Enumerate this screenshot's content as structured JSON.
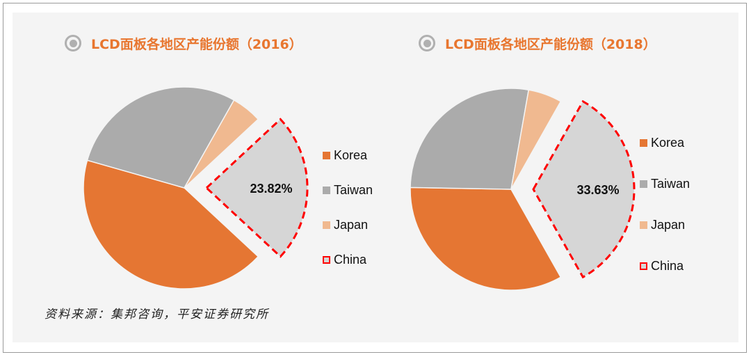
{
  "colors": {
    "Korea": "#e57633",
    "Taiwan": "#ababab",
    "Japan": "#f0b990",
    "China": "#d6d6d6",
    "china_outline": "#ff0000",
    "title": "#e8762f"
  },
  "chart_data": [
    {
      "type": "pie",
      "title": "LCD面板各地区产能份额（2016）",
      "categories": [
        "China",
        "Korea",
        "Taiwan",
        "Japan"
      ],
      "values": [
        23.82,
        42.5,
        28.8,
        4.88
      ],
      "data_labels": {
        "China": "23.82%"
      },
      "exploded": "China",
      "legend": [
        "Korea",
        "Taiwan",
        "Japan",
        "China"
      ],
      "legend_placement": "right"
    },
    {
      "type": "pie",
      "title": "LCD面板各地区产能份额（2018）",
      "categories": [
        "China",
        "Korea",
        "Taiwan",
        "Japan"
      ],
      "values": [
        33.63,
        33.47,
        27.5,
        5.4
      ],
      "data_labels": {
        "China": "33.63%"
      },
      "exploded": "China",
      "legend": [
        "Korea",
        "Taiwan",
        "Japan",
        "China"
      ],
      "legend_placement": "right"
    }
  ],
  "source": "资料来源：集邦咨询，平安证券研究所"
}
